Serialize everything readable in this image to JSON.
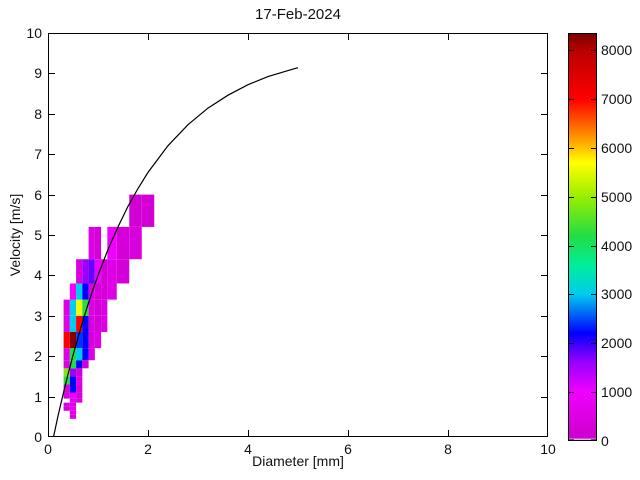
{
  "figure": {
    "background": "#ffffff"
  },
  "chart_data": {
    "type": "heatmap",
    "title": "17-Feb-2024",
    "xlabel": "Diameter [mm]",
    "ylabel": "Velocity [m/s]",
    "xlim": [
      0,
      10
    ],
    "ylim": [
      0,
      10
    ],
    "x_ticks": [
      0,
      2,
      4,
      6,
      8,
      10
    ],
    "y_ticks": [
      0,
      1,
      2,
      3,
      4,
      5,
      6,
      7,
      8,
      9,
      10
    ],
    "grid": false,
    "legend": "none",
    "colorbar": {
      "position": "right",
      "min": 0,
      "max": 8350,
      "ticks": [
        0,
        1000,
        2000,
        3000,
        4000,
        5000,
        6000,
        7000,
        8000
      ],
      "colormap_stops": [
        {
          "v": 0,
          "c": "#FFFFFF"
        },
        {
          "v": 60,
          "c": "#CC00CC"
        },
        {
          "v": 1000,
          "c": "#F000FF"
        },
        {
          "v": 1600,
          "c": "#9900FF"
        },
        {
          "v": 2200,
          "c": "#0000FF"
        },
        {
          "v": 3000,
          "c": "#00CCEE"
        },
        {
          "v": 3600,
          "c": "#00EE99"
        },
        {
          "v": 4200,
          "c": "#22DD44"
        },
        {
          "v": 5000,
          "c": "#99EE00"
        },
        {
          "v": 5700,
          "c": "#FFFF00"
        },
        {
          "v": 6200,
          "c": "#FF9900"
        },
        {
          "v": 7000,
          "c": "#FF0000"
        },
        {
          "v": 8000,
          "c": "#BB0000"
        },
        {
          "v": 8350,
          "c": "#7A0000"
        }
      ]
    },
    "diameter_bin_edges_mm": [
      0.312,
      0.437,
      0.562,
      0.687,
      0.812,
      0.937,
      1.062,
      1.187,
      1.375,
      1.625,
      1.875,
      2.125
    ],
    "velocity_bin_edges_ms": [
      0.45,
      0.55,
      0.65,
      0.75,
      0.85,
      0.95,
      1.1,
      1.3,
      1.5,
      1.7,
      1.9,
      2.2,
      2.6,
      3.0,
      3.4,
      3.8,
      4.4,
      5.2,
      6.0
    ],
    "cells": [
      {
        "di": 1,
        "vi": 0,
        "count": 500
      },
      {
        "di": 1,
        "vi": 1,
        "count": 500
      },
      {
        "di": 0,
        "vi": 2,
        "count": 250
      },
      {
        "di": 1,
        "vi": 2,
        "count": 700
      },
      {
        "di": 0,
        "vi": 3,
        "count": 400
      },
      {
        "di": 1,
        "vi": 3,
        "count": 500
      },
      {
        "di": 1,
        "vi": 4,
        "count": 700
      },
      {
        "di": 2,
        "vi": 4,
        "count": 300
      },
      {
        "di": 0,
        "vi": 5,
        "count": 400
      },
      {
        "di": 1,
        "vi": 5,
        "count": 1000
      },
      {
        "di": 2,
        "vi": 5,
        "count": 400
      },
      {
        "di": 0,
        "vi": 6,
        "count": 500
      },
      {
        "di": 1,
        "vi": 6,
        "count": 2200
      },
      {
        "di": 2,
        "vi": 6,
        "count": 400
      },
      {
        "di": 0,
        "vi": 7,
        "count": 4200
      },
      {
        "di": 1,
        "vi": 7,
        "count": 2200
      },
      {
        "di": 2,
        "vi": 7,
        "count": 500
      },
      {
        "di": 0,
        "vi": 8,
        "count": 4800
      },
      {
        "di": 1,
        "vi": 8,
        "count": 1600
      },
      {
        "di": 2,
        "vi": 8,
        "count": 300
      },
      {
        "di": 0,
        "vi": 9,
        "count": 500
      },
      {
        "di": 1,
        "vi": 9,
        "count": 4200
      },
      {
        "di": 2,
        "vi": 9,
        "count": 2200
      },
      {
        "di": 3,
        "vi": 9,
        "count": 300
      },
      {
        "di": 0,
        "vi": 10,
        "count": 500
      },
      {
        "di": 1,
        "vi": 10,
        "count": 4200
      },
      {
        "di": 2,
        "vi": 10,
        "count": 3000
      },
      {
        "di": 3,
        "vi": 10,
        "count": 2200
      },
      {
        "di": 4,
        "vi": 10,
        "count": 500
      },
      {
        "di": 0,
        "vi": 11,
        "count": 7000
      },
      {
        "di": 1,
        "vi": 11,
        "count": 8300
      },
      {
        "di": 2,
        "vi": 11,
        "count": 2400
      },
      {
        "di": 3,
        "vi": 11,
        "count": 2200
      },
      {
        "di": 4,
        "vi": 11,
        "count": 300
      },
      {
        "di": 5,
        "vi": 11,
        "count": 500
      },
      {
        "di": 0,
        "vi": 12,
        "count": 500
      },
      {
        "di": 1,
        "vi": 12,
        "count": 3000
      },
      {
        "di": 2,
        "vi": 12,
        "count": 7000
      },
      {
        "di": 3,
        "vi": 12,
        "count": 2200
      },
      {
        "di": 4,
        "vi": 12,
        "count": 400
      },
      {
        "di": 5,
        "vi": 12,
        "count": 300
      },
      {
        "di": 6,
        "vi": 12,
        "count": 500
      },
      {
        "di": 0,
        "vi": 13,
        "count": 500
      },
      {
        "di": 1,
        "vi": 13,
        "count": 3000
      },
      {
        "di": 2,
        "vi": 13,
        "count": 5600
      },
      {
        "di": 3,
        "vi": 13,
        "count": 4200
      },
      {
        "di": 4,
        "vi": 13,
        "count": 500
      },
      {
        "di": 5,
        "vi": 13,
        "count": 300
      },
      {
        "di": 6,
        "vi": 13,
        "count": 500
      },
      {
        "di": 1,
        "vi": 14,
        "count": 1000
      },
      {
        "di": 2,
        "vi": 14,
        "count": 3000
      },
      {
        "di": 3,
        "vi": 14,
        "count": 2200
      },
      {
        "di": 4,
        "vi": 14,
        "count": 500
      },
      {
        "di": 5,
        "vi": 14,
        "count": 300
      },
      {
        "di": 6,
        "vi": 14,
        "count": 300
      },
      {
        "di": 7,
        "vi": 14,
        "count": 500
      },
      {
        "di": 2,
        "vi": 15,
        "count": 400
      },
      {
        "di": 3,
        "vi": 15,
        "count": 1600
      },
      {
        "di": 4,
        "vi": 15,
        "count": 1800
      },
      {
        "di": 5,
        "vi": 15,
        "count": 1000
      },
      {
        "di": 6,
        "vi": 15,
        "count": 300
      },
      {
        "di": 7,
        "vi": 15,
        "count": 500
      },
      {
        "di": 8,
        "vi": 15,
        "count": 300
      },
      {
        "di": 4,
        "vi": 16,
        "count": 500
      },
      {
        "di": 5,
        "vi": 16,
        "count": 300
      },
      {
        "di": 7,
        "vi": 16,
        "count": 1000
      },
      {
        "di": 8,
        "vi": 16,
        "count": 300
      },
      {
        "di": 9,
        "vi": 16,
        "count": 400
      },
      {
        "di": 9,
        "vi": 17,
        "count": 250
      },
      {
        "di": 10,
        "vi": 17,
        "count": 250
      }
    ],
    "curve": {
      "name": "terminal velocity curve",
      "color": "#000000",
      "points": [
        [
          0.11,
          0
        ],
        [
          0.2,
          0.52
        ],
        [
          0.3,
          1.05
        ],
        [
          0.4,
          1.55
        ],
        [
          0.5,
          2.02
        ],
        [
          0.6,
          2.46
        ],
        [
          0.7,
          2.88
        ],
        [
          0.8,
          3.28
        ],
        [
          0.9,
          3.65
        ],
        [
          1.0,
          4.0
        ],
        [
          1.2,
          4.64
        ],
        [
          1.4,
          5.2
        ],
        [
          1.6,
          5.71
        ],
        [
          1.8,
          6.15
        ],
        [
          2.0,
          6.55
        ],
        [
          2.4,
          7.21
        ],
        [
          2.8,
          7.73
        ],
        [
          3.2,
          8.14
        ],
        [
          3.6,
          8.46
        ],
        [
          4.0,
          8.72
        ],
        [
          4.4,
          8.92
        ],
        [
          4.8,
          9.07
        ],
        [
          5.0,
          9.14
        ]
      ]
    }
  }
}
